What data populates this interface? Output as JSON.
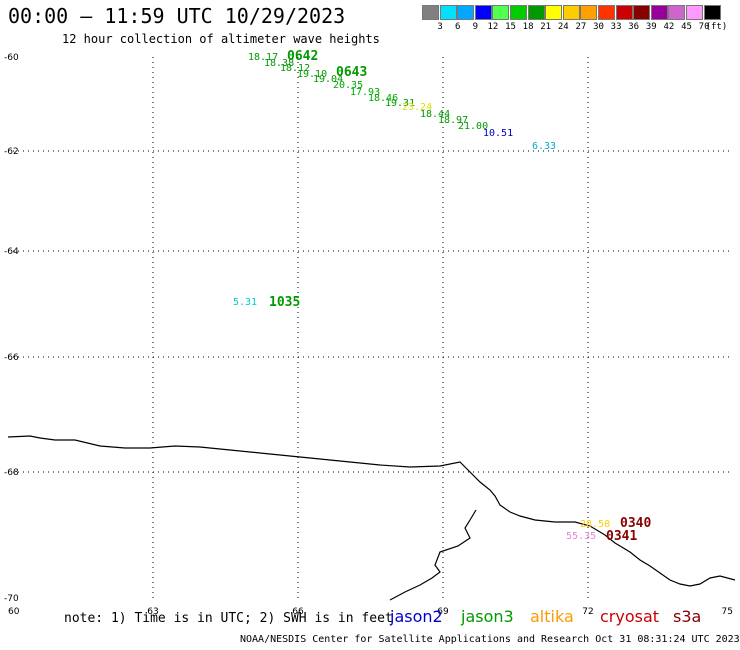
{
  "header": {
    "title": "00:00 – 11:59 UTC 10/29/2023",
    "subtitle": "12 hour collection of altimeter wave heights"
  },
  "legend": {
    "unit_label": "(ft)",
    "colors": [
      "#808080",
      "#00e0ff",
      "#00a8ff",
      "#0000ff",
      "#50ff50",
      "#00cc00",
      "#009900",
      "#ffff00",
      "#ffcc00",
      "#ffa000",
      "#ff3300",
      "#cc0000",
      "#880000",
      "#990099",
      "#cc66cc",
      "#ff99ff",
      "#000000"
    ],
    "ticks": [
      "3",
      "6",
      "9",
      "12",
      "15",
      "18",
      "21",
      "24",
      "27",
      "30",
      "33",
      "36",
      "39",
      "42",
      "45",
      "70"
    ]
  },
  "axes": {
    "lat_labels": [
      "-60",
      "-62",
      "-64",
      "-66",
      "-68",
      "-70"
    ],
    "lon_labels": [
      "60",
      "63",
      "66",
      "69",
      "72",
      "75"
    ]
  },
  "observations": [
    {
      "text": "18.17",
      "color": "#009900"
    },
    {
      "text": "18.38",
      "color": "#009900"
    },
    {
      "text": "18.12",
      "color": "#009900"
    },
    {
      "text": "19.10",
      "color": "#009900"
    },
    {
      "text": "19.04",
      "color": "#009900"
    },
    {
      "text": "20.35",
      "color": "#00aa00"
    },
    {
      "text": "17.93",
      "color": "#00aa00"
    },
    {
      "text": "18.46",
      "color": "#00aa00"
    },
    {
      "text": "19.31",
      "color": "#009900"
    },
    {
      "text": "23.24",
      "color": "#dddd00"
    },
    {
      "text": "18.44",
      "color": "#009900"
    },
    {
      "text": "18.97",
      "color": "#009900"
    },
    {
      "text": "21.00",
      "color": "#009900"
    },
    {
      "text": "10.51",
      "color": "#0000cc"
    },
    {
      "text": "6.33",
      "color": "#00aacc"
    },
    {
      "text": "5.31",
      "color": "#00cccc"
    },
    {
      "text": "28.50",
      "color": "#ffcc00"
    },
    {
      "text": "55.35",
      "color": "#dd88dd"
    }
  ],
  "time_labels": [
    {
      "text": "0642",
      "color": "#009900"
    },
    {
      "text": "0643",
      "color": "#009900"
    },
    {
      "text": "1035",
      "color": "#009900"
    },
    {
      "text": "0340",
      "color": "#880000"
    },
    {
      "text": "0341",
      "color": "#880000"
    }
  ],
  "footer": {
    "note": "note: 1) Time is in UTC; 2) SWH is in feet",
    "satellites": [
      {
        "name": "jason2",
        "color": "#0000cc"
      },
      {
        "name": "jason3",
        "color": "#009900"
      },
      {
        "name": "altika",
        "color": "#ff9900"
      },
      {
        "name": "cryosat",
        "color": "#cc0000"
      },
      {
        "name": "s3a",
        "color": "#880000"
      }
    ],
    "credit": "NOAA/NESDIS Center for Satellite Applications and Research    Oct 31 08:31:24 UTC 2023"
  }
}
